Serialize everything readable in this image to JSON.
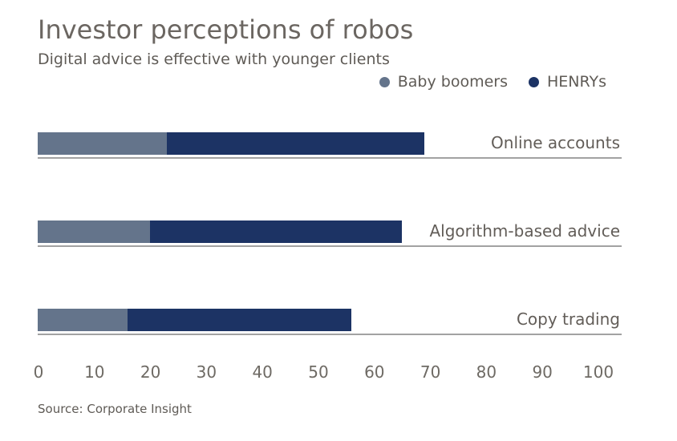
{
  "header": {
    "title": "Investor perceptions of robos",
    "subtitle": "Digital advice is effective with younger clients"
  },
  "legend": [
    {
      "label": "Baby boomers",
      "color": "#64748B"
    },
    {
      "label": "HENRYs",
      "color": "#1C3364"
    }
  ],
  "chart_data": {
    "type": "bar",
    "orientation": "horizontal",
    "overlap": true,
    "title": "Investor perceptions of robos",
    "subtitle": "Digital advice is effective with younger clients",
    "categories": [
      "Online accounts",
      "Algorithm-based advice",
      "Copy trading"
    ],
    "series": [
      {
        "name": "Baby boomers",
        "color": "#64748B",
        "values": [
          23,
          20,
          16
        ]
      },
      {
        "name": "HENRYs",
        "color": "#1C3364",
        "values": [
          69,
          65,
          56
        ]
      }
    ],
    "xlim": [
      0,
      100
    ],
    "xticks": [
      0,
      10,
      20,
      30,
      40,
      50,
      60,
      70,
      80,
      90,
      100
    ],
    "legend_position": "top-right",
    "grid": "category-underlines-only"
  },
  "footer": {
    "source": "Source: Corporate Insight"
  }
}
